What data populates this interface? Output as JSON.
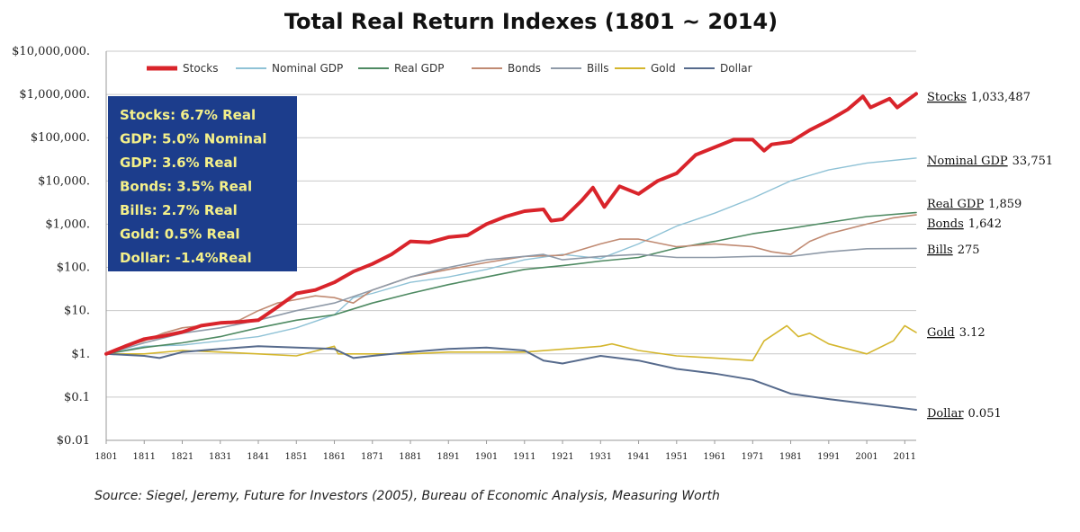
{
  "chart_data": {
    "type": "line",
    "title": "Total Real Return Indexes (1801 ~ 2014)",
    "yscale": "log",
    "ylim": [
      0.01,
      10000000
    ],
    "yticks": [
      {
        "value": 10000000,
        "label": "$10,000,000."
      },
      {
        "value": 1000000,
        "label": "$1,000,000."
      },
      {
        "value": 100000,
        "label": "$100,000."
      },
      {
        "value": 10000,
        "label": "$10,000."
      },
      {
        "value": 1000,
        "label": "$1,000."
      },
      {
        "value": 100,
        "label": "$100."
      },
      {
        "value": 10,
        "label": "$10."
      },
      {
        "value": 1,
        "label": "$1."
      },
      {
        "value": 0.1,
        "label": "$0.1"
      },
      {
        "value": 0.01,
        "label": "$0.01"
      }
    ],
    "xlim": [
      1801,
      2014
    ],
    "xticks": [
      1801,
      1811,
      1821,
      1831,
      1841,
      1851,
      1861,
      1871,
      1881,
      1891,
      1901,
      1911,
      1921,
      1931,
      1941,
      1951,
      1961,
      1971,
      1981,
      1991,
      2001,
      2011
    ],
    "series": [
      {
        "name": "Stocks",
        "color": "#d9242b",
        "width": 4,
        "points": [
          [
            1801,
            1
          ],
          [
            1806,
            1.5
          ],
          [
            1811,
            2.2
          ],
          [
            1816,
            2.6
          ],
          [
            1821,
            3.2
          ],
          [
            1826,
            4.5
          ],
          [
            1831,
            5.2
          ],
          [
            1836,
            5.5
          ],
          [
            1841,
            6
          ],
          [
            1846,
            12
          ],
          [
            1851,
            25
          ],
          [
            1856,
            30
          ],
          [
            1861,
            45
          ],
          [
            1866,
            80
          ],
          [
            1871,
            120
          ],
          [
            1876,
            200
          ],
          [
            1881,
            400
          ],
          [
            1886,
            380
          ],
          [
            1891,
            500
          ],
          [
            1896,
            550
          ],
          [
            1901,
            1000
          ],
          [
            1906,
            1500
          ],
          [
            1911,
            2000
          ],
          [
            1916,
            2200
          ],
          [
            1918,
            1200
          ],
          [
            1921,
            1300
          ],
          [
            1926,
            3500
          ],
          [
            1929,
            7000
          ],
          [
            1932,
            2500
          ],
          [
            1936,
            7500
          ],
          [
            1941,
            5000
          ],
          [
            1946,
            10000
          ],
          [
            1951,
            15000
          ],
          [
            1956,
            40000
          ],
          [
            1961,
            60000
          ],
          [
            1966,
            90000
          ],
          [
            1971,
            90000
          ],
          [
            1974,
            50000
          ],
          [
            1976,
            70000
          ],
          [
            1981,
            80000
          ],
          [
            1986,
            150000
          ],
          [
            1991,
            250000
          ],
          [
            1996,
            450000
          ],
          [
            2000,
            900000
          ],
          [
            2002,
            500000
          ],
          [
            2007,
            800000
          ],
          [
            2009,
            500000
          ],
          [
            2014,
            1033487
          ]
        ]
      },
      {
        "name": "Nominal GDP",
        "color": "#8fc2d6",
        "width": 1.4,
        "points": [
          [
            1801,
            1
          ],
          [
            1811,
            1.5
          ],
          [
            1821,
            1.6
          ],
          [
            1831,
            2
          ],
          [
            1841,
            2.5
          ],
          [
            1851,
            4
          ],
          [
            1861,
            8
          ],
          [
            1866,
            20
          ],
          [
            1871,
            25
          ],
          [
            1881,
            45
          ],
          [
            1891,
            60
          ],
          [
            1901,
            90
          ],
          [
            1911,
            150
          ],
          [
            1921,
            200
          ],
          [
            1931,
            160
          ],
          [
            1941,
            350
          ],
          [
            1951,
            900
          ],
          [
            1961,
            1800
          ],
          [
            1971,
            4000
          ],
          [
            1981,
            10000
          ],
          [
            1991,
            18000
          ],
          [
            2001,
            26000
          ],
          [
            2014,
            33751
          ]
        ]
      },
      {
        "name": "Real GDP",
        "color": "#4e8a62",
        "width": 1.6,
        "points": [
          [
            1801,
            1
          ],
          [
            1811,
            1.4
          ],
          [
            1821,
            1.8
          ],
          [
            1831,
            2.5
          ],
          [
            1841,
            4
          ],
          [
            1851,
            6
          ],
          [
            1861,
            8
          ],
          [
            1871,
            15
          ],
          [
            1881,
            25
          ],
          [
            1891,
            40
          ],
          [
            1901,
            60
          ],
          [
            1911,
            90
          ],
          [
            1921,
            110
          ],
          [
            1931,
            140
          ],
          [
            1941,
            170
          ],
          [
            1951,
            280
          ],
          [
            1961,
            400
          ],
          [
            1971,
            600
          ],
          [
            1981,
            800
          ],
          [
            1991,
            1100
          ],
          [
            2001,
            1500
          ],
          [
            2014,
            1859
          ]
        ]
      },
      {
        "name": "Bonds",
        "color": "#c08a72",
        "width": 1.6,
        "points": [
          [
            1801,
            1
          ],
          [
            1806,
            1.5
          ],
          [
            1811,
            2
          ],
          [
            1816,
            3
          ],
          [
            1821,
            4
          ],
          [
            1826,
            4.5
          ],
          [
            1831,
            5
          ],
          [
            1836,
            6
          ],
          [
            1841,
            10
          ],
          [
            1846,
            15
          ],
          [
            1851,
            18
          ],
          [
            1856,
            22
          ],
          [
            1861,
            20
          ],
          [
            1866,
            15
          ],
          [
            1871,
            30
          ],
          [
            1881,
            60
          ],
          [
            1891,
            90
          ],
          [
            1901,
            130
          ],
          [
            1911,
            180
          ],
          [
            1921,
            190
          ],
          [
            1931,
            350
          ],
          [
            1936,
            450
          ],
          [
            1941,
            450
          ],
          [
            1951,
            300
          ],
          [
            1961,
            350
          ],
          [
            1971,
            300
          ],
          [
            1976,
            230
          ],
          [
            1981,
            200
          ],
          [
            1986,
            400
          ],
          [
            1991,
            600
          ],
          [
            2001,
            1000
          ],
          [
            2008,
            1400
          ],
          [
            2014,
            1642
          ]
        ]
      },
      {
        "name": "Bills",
        "color": "#8f9aa8",
        "width": 1.6,
        "points": [
          [
            1801,
            1
          ],
          [
            1811,
            1.8
          ],
          [
            1821,
            3
          ],
          [
            1831,
            4
          ],
          [
            1841,
            6
          ],
          [
            1851,
            10
          ],
          [
            1861,
            15
          ],
          [
            1871,
            30
          ],
          [
            1881,
            60
          ],
          [
            1891,
            100
          ],
          [
            1901,
            150
          ],
          [
            1911,
            180
          ],
          [
            1916,
            200
          ],
          [
            1921,
            150
          ],
          [
            1931,
            180
          ],
          [
            1941,
            200
          ],
          [
            1951,
            170
          ],
          [
            1961,
            170
          ],
          [
            1971,
            180
          ],
          [
            1981,
            180
          ],
          [
            1991,
            230
          ],
          [
            2001,
            270
          ],
          [
            2014,
            275
          ]
        ]
      },
      {
        "name": "Gold",
        "color": "#d4b62d",
        "width": 1.6,
        "points": [
          [
            1801,
            1
          ],
          [
            1811,
            1
          ],
          [
            1821,
            1.2
          ],
          [
            1831,
            1.1
          ],
          [
            1841,
            1
          ],
          [
            1851,
            0.9
          ],
          [
            1861,
            1.5
          ],
          [
            1862,
            1
          ],
          [
            1871,
            1
          ],
          [
            1881,
            1
          ],
          [
            1891,
            1.1
          ],
          [
            1901,
            1.1
          ],
          [
            1911,
            1.1
          ],
          [
            1931,
            1.5
          ],
          [
            1934,
            1.7
          ],
          [
            1941,
            1.2
          ],
          [
            1951,
            0.9
          ],
          [
            1961,
            0.8
          ],
          [
            1971,
            0.7
          ],
          [
            1974,
            2
          ],
          [
            1980,
            4.5
          ],
          [
            1983,
            2.5
          ],
          [
            1986,
            3
          ],
          [
            1991,
            1.7
          ],
          [
            2001,
            1
          ],
          [
            2008,
            2
          ],
          [
            2011,
            4.5
          ],
          [
            2014,
            3.12
          ]
        ]
      },
      {
        "name": "Dollar",
        "color": "#566a8c",
        "width": 2,
        "points": [
          [
            1801,
            1
          ],
          [
            1811,
            0.9
          ],
          [
            1815,
            0.8
          ],
          [
            1821,
            1.1
          ],
          [
            1831,
            1.3
          ],
          [
            1841,
            1.5
          ],
          [
            1851,
            1.4
          ],
          [
            1861,
            1.3
          ],
          [
            1866,
            0.8
          ],
          [
            1871,
            0.9
          ],
          [
            1881,
            1.1
          ],
          [
            1891,
            1.3
          ],
          [
            1901,
            1.4
          ],
          [
            1911,
            1.2
          ],
          [
            1916,
            0.7
          ],
          [
            1921,
            0.6
          ],
          [
            1931,
            0.9
          ],
          [
            1941,
            0.7
          ],
          [
            1951,
            0.45
          ],
          [
            1961,
            0.35
          ],
          [
            1971,
            0.25
          ],
          [
            1981,
            0.12
          ],
          [
            1991,
            0.09
          ],
          [
            2001,
            0.07
          ],
          [
            2014,
            0.051
          ]
        ]
      }
    ],
    "end_labels": [
      {
        "series": "Stocks",
        "name": "Stocks",
        "value": "1,033,487"
      },
      {
        "series": "Nominal GDP",
        "name": "Nominal GDP",
        "value": "33,751"
      },
      {
        "series": "Real GDP",
        "name": "Real GDP",
        "value": "1,859"
      },
      {
        "series": "Bonds",
        "name": "Bonds",
        "value": "1,642"
      },
      {
        "series": "Bills",
        "name": "Bills",
        "value": "275"
      },
      {
        "series": "Gold",
        "name": "Gold",
        "value": "3.12"
      },
      {
        "series": "Dollar",
        "name": "Dollar",
        "value": "0.051"
      }
    ],
    "stats_box": {
      "background": "#1c3d8c",
      "lines": [
        "Stocks: 6.7% Real",
        "GDP: 5.0% Nominal",
        "GDP: 3.6% Real",
        "Bonds: 3.5% Real",
        "Bills:    2.7% Real",
        "Gold:   0.5% Real",
        "Dollar: -1.4%Real"
      ]
    },
    "legend": [
      "Stocks",
      "Nominal GDP",
      "Real GDP",
      "Bonds",
      "Bills",
      "Gold",
      "Dollar"
    ],
    "source": "Source: Siegel, Jeremy, Future for Investors (2005),  Bureau of Economic Analysis, Measuring Worth"
  }
}
